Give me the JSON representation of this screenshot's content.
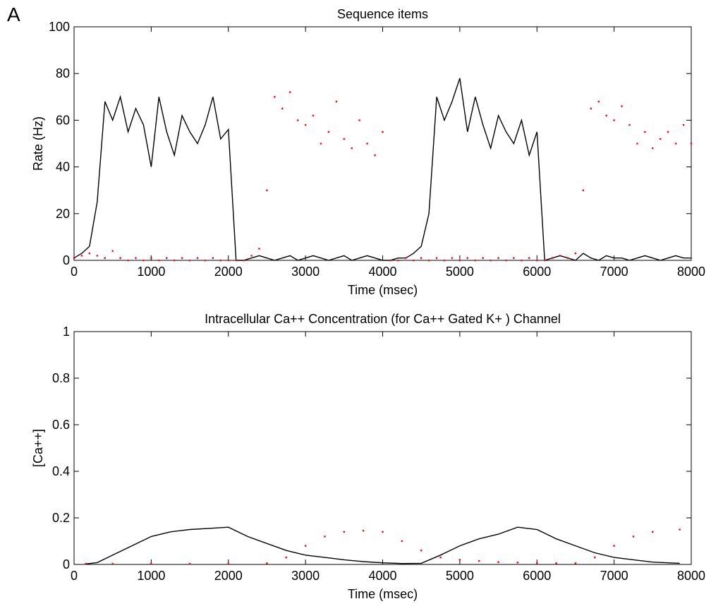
{
  "panel_label": "A",
  "chart_data": [
    {
      "type": "line",
      "title": "Sequence items",
      "xlabel": "Time (msec)",
      "ylabel": "Rate (Hz)",
      "xlim": [
        0,
        8000
      ],
      "xticks": [
        0,
        1000,
        2000,
        3000,
        4000,
        5000,
        6000,
        7000,
        8000
      ],
      "ylim": [
        0,
        100
      ],
      "yticks": [
        0,
        20,
        40,
        60,
        80,
        100
      ],
      "grid": false,
      "series": [
        {
          "color": "#000000",
          "style": "solid",
          "x": [
            0,
            100,
            200,
            300,
            400,
            500,
            600,
            700,
            800,
            900,
            1000,
            1100,
            1200,
            1300,
            1400,
            1500,
            1600,
            1700,
            1800,
            1900,
            2000,
            2100,
            2200,
            2300,
            2400,
            2500,
            2600,
            2700,
            2800,
            2900,
            3000,
            3100,
            3200,
            3300,
            3400,
            3500,
            3600,
            3700,
            3800,
            3900,
            4000,
            4100,
            4200,
            4300,
            4400,
            4500,
            4600,
            4700,
            4800,
            4900,
            5000,
            5100,
            5200,
            5300,
            5400,
            5500,
            5600,
            5700,
            5800,
            5900,
            6000,
            6100,
            6200,
            6300,
            6400,
            6500,
            6600,
            6700,
            6800,
            6900,
            7000,
            7100,
            7200,
            7300,
            7400,
            7500,
            7600,
            7700,
            7800,
            7900,
            8000
          ],
          "values": [
            1,
            3,
            6,
            25,
            68,
            60,
            70,
            55,
            65,
            58,
            40,
            70,
            55,
            45,
            62,
            55,
            50,
            58,
            70,
            52,
            56,
            0,
            0,
            1,
            2,
            1,
            0,
            1,
            2,
            0,
            1,
            2,
            1,
            0,
            1,
            2,
            0,
            1,
            2,
            1,
            0,
            0,
            1,
            1,
            3,
            6,
            20,
            70,
            60,
            68,
            78,
            55,
            70,
            58,
            48,
            62,
            55,
            50,
            60,
            45,
            55,
            0,
            1,
            2,
            1,
            0,
            3,
            1,
            0,
            2,
            1,
            1,
            0,
            1,
            2,
            1,
            0,
            1,
            2,
            1,
            1
          ]
        },
        {
          "color": "#ff0000",
          "style": "dotted",
          "x": [
            0,
            100,
            200,
            300,
            400,
            500,
            600,
            700,
            800,
            900,
            1000,
            1100,
            1200,
            1300,
            1400,
            1500,
            1600,
            1700,
            1800,
            1900,
            2000,
            2100,
            2200,
            2300,
            2400,
            2500,
            2600,
            2700,
            2800,
            2900,
            3000,
            3100,
            3200,
            3300,
            3400,
            3500,
            3600,
            3700,
            3800,
            3900,
            4000,
            4100,
            4200,
            4300,
            4400,
            4500,
            4600,
            4700,
            4800,
            4900,
            5000,
            5100,
            5200,
            5300,
            5400,
            5500,
            5600,
            5700,
            5800,
            5900,
            6000,
            6100,
            6200,
            6300,
            6400,
            6500,
            6600,
            6700,
            6800,
            6900,
            7000,
            7100,
            7200,
            7300,
            7400,
            7500,
            7600,
            7700,
            7800,
            7900,
            8000
          ],
          "values": [
            1,
            2,
            3,
            2,
            1,
            4,
            1,
            0,
            1,
            0,
            1,
            0,
            1,
            0,
            1,
            0,
            1,
            0,
            1,
            0,
            0,
            0,
            0,
            2,
            5,
            30,
            70,
            65,
            72,
            60,
            58,
            62,
            50,
            55,
            68,
            52,
            48,
            60,
            50,
            45,
            55,
            0,
            0,
            1,
            0,
            1,
            0,
            1,
            0,
            1,
            0,
            1,
            0,
            1,
            0,
            1,
            0,
            1,
            0,
            1,
            0,
            0,
            1,
            2,
            1,
            3,
            30,
            65,
            68,
            62,
            60,
            66,
            58,
            50,
            55,
            48,
            52,
            55,
            50,
            58,
            50
          ]
        }
      ]
    },
    {
      "type": "line",
      "title": "Intracellular Ca++ Concentration (for Ca++ Gated K+ ) Channel",
      "xlabel": "Time (msec)",
      "ylabel": "[Ca++]",
      "xlim": [
        0,
        8000
      ],
      "xticks": [
        0,
        1000,
        2000,
        3000,
        4000,
        5000,
        6000,
        7000,
        8000
      ],
      "ylim": [
        0,
        1
      ],
      "yticks": [
        0,
        0.2,
        0.4,
        0.6,
        0.8,
        1
      ],
      "grid": false,
      "series": [
        {
          "color": "#000000",
          "style": "solid",
          "x": [
            150,
            300,
            500,
            750,
            1000,
            1250,
            1500,
            1750,
            2000,
            2250,
            2500,
            2750,
            3000,
            3250,
            3500,
            3750,
            4000,
            4250,
            4500,
            4750,
            5000,
            5250,
            5500,
            5750,
            6000,
            6250,
            6500,
            6750,
            7000,
            7250,
            7500,
            7850
          ],
          "values": [
            0.002,
            0.008,
            0.04,
            0.08,
            0.12,
            0.14,
            0.15,
            0.155,
            0.16,
            0.12,
            0.09,
            0.06,
            0.04,
            0.03,
            0.02,
            0.012,
            0.007,
            0.004,
            0.005,
            0.04,
            0.08,
            0.11,
            0.13,
            0.16,
            0.15,
            0.11,
            0.08,
            0.05,
            0.03,
            0.02,
            0.01,
            0.005
          ]
        },
        {
          "color": "#ff0000",
          "style": "dotted",
          "x": [
            150,
            500,
            1000,
            1500,
            2000,
            2500,
            2750,
            3000,
            3250,
            3500,
            3750,
            4000,
            4250,
            4500,
            4750,
            5000,
            5250,
            5500,
            5750,
            6000,
            6250,
            6500,
            6750,
            7000,
            7250,
            7500,
            7850
          ],
          "values": [
            0.003,
            0.003,
            0.003,
            0.003,
            0.003,
            0.005,
            0.03,
            0.08,
            0.12,
            0.14,
            0.145,
            0.14,
            0.1,
            0.06,
            0.03,
            0.02,
            0.015,
            0.01,
            0.008,
            0.006,
            0.005,
            0.005,
            0.03,
            0.08,
            0.12,
            0.14,
            0.15
          ]
        }
      ]
    }
  ]
}
